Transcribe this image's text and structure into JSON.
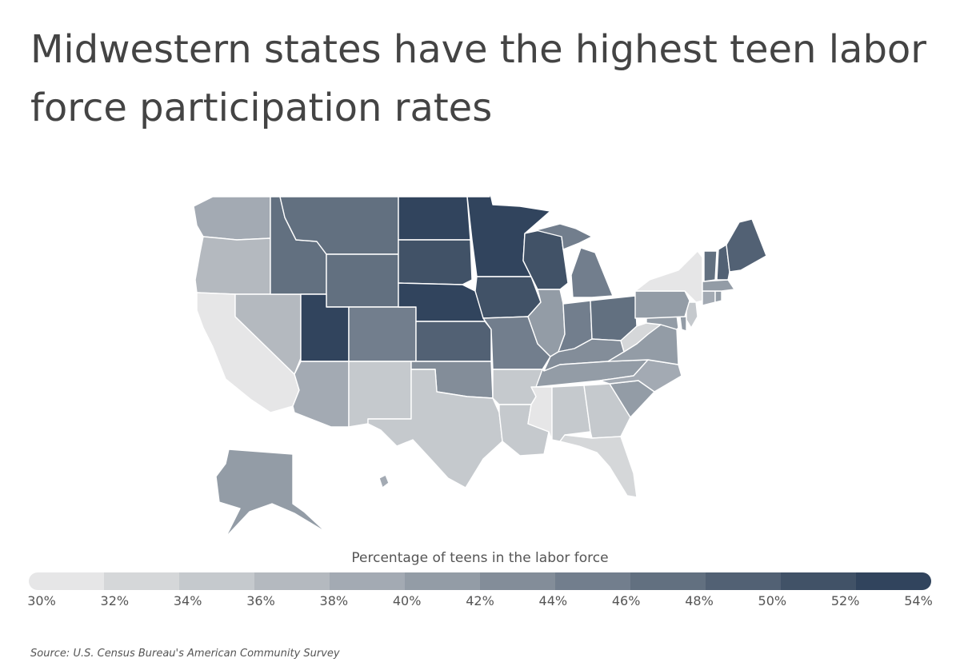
{
  "title": "Midwestern states have the highest teen labor force participation rates",
  "legend": {
    "title": "Percentage of teens in the labor force",
    "ticks": [
      "30%",
      "32%",
      "34%",
      "36%",
      "38%",
      "40%",
      "42%",
      "44%",
      "46%",
      "48%",
      "50%",
      "52%",
      "54%"
    ],
    "colors": [
      "#e6e6e7",
      "#d5d7d9",
      "#c5c9cd",
      "#b4b9bf",
      "#a3aab3",
      "#939ca6",
      "#838d99",
      "#727e8d",
      "#627080",
      "#526174",
      "#415267",
      "#31445d"
    ]
  },
  "source": "Source:  U.S. Census Bureau's American Community Survey",
  "states": [
    {
      "name": "WA",
      "value": 39.5
    },
    {
      "name": "OR",
      "value": 37.5
    },
    {
      "name": "CA",
      "value": 31.0
    },
    {
      "name": "NV",
      "value": 37.5
    },
    {
      "name": "ID",
      "value": 47.5
    },
    {
      "name": "MT",
      "value": 47.0
    },
    {
      "name": "WY",
      "value": 46.5
    },
    {
      "name": "UT",
      "value": 52.5
    },
    {
      "name": "AZ",
      "value": 38.5
    },
    {
      "name": "CO",
      "value": 45.5
    },
    {
      "name": "NM",
      "value": 35.0
    },
    {
      "name": "ND",
      "value": 53.5
    },
    {
      "name": "SD",
      "value": 51.5
    },
    {
      "name": "NE",
      "value": 53.5
    },
    {
      "name": "KS",
      "value": 48.5
    },
    {
      "name": "OK",
      "value": 42.5
    },
    {
      "name": "TX",
      "value": 35.5
    },
    {
      "name": "MN",
      "value": 53.5
    },
    {
      "name": "IA",
      "value": 51.0
    },
    {
      "name": "MO",
      "value": 45.5
    },
    {
      "name": "AR",
      "value": 35.5
    },
    {
      "name": "LA",
      "value": 35.0
    },
    {
      "name": "WI",
      "value": 51.5
    },
    {
      "name": "IL",
      "value": 41.5
    },
    {
      "name": "MI",
      "value": 45.0
    },
    {
      "name": "IN",
      "value": 44.5
    },
    {
      "name": "OH",
      "value": 46.5
    },
    {
      "name": "KY",
      "value": 43.0
    },
    {
      "name": "TN",
      "value": 41.0
    },
    {
      "name": "MS",
      "value": 31.5
    },
    {
      "name": "AL",
      "value": 35.0
    },
    {
      "name": "GA",
      "value": 35.5
    },
    {
      "name": "FL",
      "value": 33.0
    },
    {
      "name": "SC",
      "value": 41.5
    },
    {
      "name": "NC",
      "value": 39.5
    },
    {
      "name": "VA",
      "value": 40.0
    },
    {
      "name": "WV",
      "value": 33.5
    },
    {
      "name": "MD",
      "value": 41.5
    },
    {
      "name": "DE",
      "value": 40.5
    },
    {
      "name": "NJ",
      "value": 34.0
    },
    {
      "name": "PA",
      "value": 41.0
    },
    {
      "name": "NY",
      "value": 31.0
    },
    {
      "name": "CT",
      "value": 39.5
    },
    {
      "name": "RI",
      "value": 40.0
    },
    {
      "name": "MA",
      "value": 41.0
    },
    {
      "name": "VT",
      "value": 47.0
    },
    {
      "name": "NH",
      "value": 49.5
    },
    {
      "name": "ME",
      "value": 49.5
    },
    {
      "name": "AK",
      "value": 41.5
    },
    {
      "name": "HI",
      "value": 39.5
    }
  ]
}
